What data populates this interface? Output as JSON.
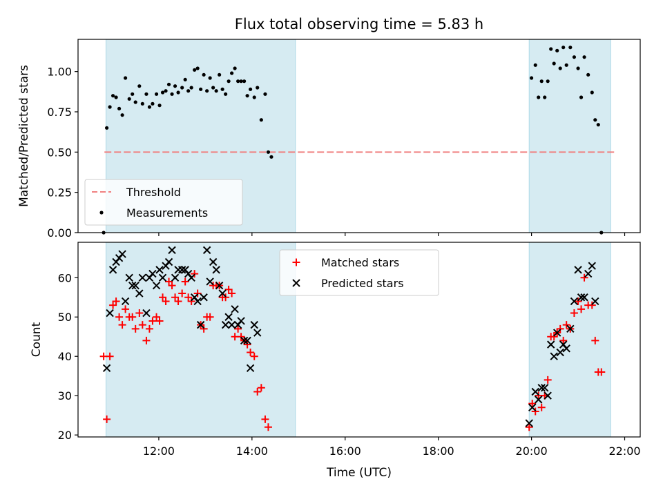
{
  "chart_data": [
    {
      "type": "scatter",
      "title": "Flux total observing time = 5.83 h",
      "xlabel": "",
      "ylabel": "Matched/Predicted stars",
      "ylim": [
        0,
        1.2
      ],
      "yticks": [
        "0.00",
        "0.25",
        "0.50",
        "0.75",
        "1.00"
      ],
      "xlim": [
        "10:16",
        "22:20"
      ],
      "observing_windows": [
        [
          "10:52",
          "14:56"
        ],
        [
          "19:57",
          "21:42"
        ]
      ],
      "threshold": {
        "label": "Threshold",
        "value": 0.5,
        "x_start": "10:50",
        "x_end": "21:48",
        "color": "#f08080"
      },
      "legend": {
        "position": "lower-left",
        "entries": [
          "Threshold",
          "Measurements"
        ]
      },
      "series": [
        {
          "name": "Measurements",
          "color": "#000000",
          "points": [
            [
              "10:49",
              0.0
            ],
            [
              "10:53",
              0.65
            ],
            [
              "10:57",
              0.78
            ],
            [
              "11:01",
              0.85
            ],
            [
              "11:05",
              0.84
            ],
            [
              "11:09",
              0.77
            ],
            [
              "11:13",
              0.73
            ],
            [
              "11:17",
              0.96
            ],
            [
              "11:22",
              0.83
            ],
            [
              "11:26",
              0.86
            ],
            [
              "11:30",
              0.81
            ],
            [
              "11:35",
              0.91
            ],
            [
              "11:39",
              0.8
            ],
            [
              "11:44",
              0.86
            ],
            [
              "11:48",
              0.78
            ],
            [
              "11:52",
              0.8
            ],
            [
              "11:57",
              0.86
            ],
            [
              "12:01",
              0.79
            ],
            [
              "12:05",
              0.87
            ],
            [
              "12:09",
              0.88
            ],
            [
              "12:13",
              0.92
            ],
            [
              "12:17",
              0.86
            ],
            [
              "12:21",
              0.91
            ],
            [
              "12:25",
              0.87
            ],
            [
              "12:30",
              0.9
            ],
            [
              "12:34",
              0.95
            ],
            [
              "12:38",
              0.88
            ],
            [
              "12:42",
              0.9
            ],
            [
              "12:46",
              1.01
            ],
            [
              "12:50",
              1.02
            ],
            [
              "12:54",
              0.89
            ],
            [
              "12:58",
              0.98
            ],
            [
              "13:02",
              0.88
            ],
            [
              "13:06",
              0.96
            ],
            [
              "13:10",
              0.9
            ],
            [
              "13:14",
              0.88
            ],
            [
              "13:18",
              0.98
            ],
            [
              "13:22",
              0.89
            ],
            [
              "13:26",
              0.86
            ],
            [
              "13:30",
              0.94
            ],
            [
              "13:34",
              0.99
            ],
            [
              "13:38",
              1.02
            ],
            [
              "13:42",
              0.94
            ],
            [
              "13:46",
              0.94
            ],
            [
              "13:50",
              0.94
            ],
            [
              "13:54",
              0.85
            ],
            [
              "13:58",
              0.89
            ],
            [
              "14:03",
              0.84
            ],
            [
              "14:07",
              0.9
            ],
            [
              "14:12",
              0.7
            ],
            [
              "14:17",
              0.86
            ],
            [
              "14:21",
              0.5
            ],
            [
              "14:25",
              0.47
            ],
            [
              "20:00",
              0.96
            ],
            [
              "20:05",
              1.04
            ],
            [
              "20:09",
              0.84
            ],
            [
              "20:13",
              0.94
            ],
            [
              "20:17",
              0.84
            ],
            [
              "20:21",
              0.94
            ],
            [
              "20:25",
              1.14
            ],
            [
              "20:29",
              1.05
            ],
            [
              "20:33",
              1.13
            ],
            [
              "20:37",
              1.02
            ],
            [
              "20:41",
              1.15
            ],
            [
              "20:45",
              1.04
            ],
            [
              "20:50",
              1.15
            ],
            [
              "20:55",
              1.09
            ],
            [
              "21:00",
              1.02
            ],
            [
              "21:04",
              0.84
            ],
            [
              "21:08",
              1.09
            ],
            [
              "21:13",
              0.98
            ],
            [
              "21:18",
              0.87
            ],
            [
              "21:22",
              0.7
            ],
            [
              "21:26",
              0.67
            ],
            [
              "21:30",
              0.0
            ]
          ]
        }
      ]
    },
    {
      "type": "scatter",
      "title": "",
      "xlabel": "Time (UTC)",
      "ylabel": "Count",
      "ylim": [
        19.5,
        69
      ],
      "yticks": [
        "20",
        "30",
        "40",
        "50",
        "60"
      ],
      "xticks": [
        "12:00",
        "14:00",
        "16:00",
        "18:00",
        "20:00",
        "22:00"
      ],
      "legend": {
        "position": "upper-center",
        "entries": [
          "Matched stars",
          "Predicted stars"
        ]
      },
      "series": [
        {
          "name": "Matched stars",
          "marker": "+",
          "color": "#ff0000",
          "points": [
            [
              "10:49",
              40
            ],
            [
              "10:53",
              24
            ],
            [
              "10:57",
              40
            ],
            [
              "11:01",
              53
            ],
            [
              "11:05",
              54
            ],
            [
              "11:09",
              50
            ],
            [
              "11:13",
              48
            ],
            [
              "11:17",
              52
            ],
            [
              "11:22",
              50
            ],
            [
              "11:26",
              50
            ],
            [
              "11:30",
              47
            ],
            [
              "11:35",
              51
            ],
            [
              "11:39",
              48
            ],
            [
              "11:44",
              44
            ],
            [
              "11:48",
              47
            ],
            [
              "11:52",
              49
            ],
            [
              "11:57",
              50
            ],
            [
              "12:01",
              49
            ],
            [
              "12:05",
              55
            ],
            [
              "12:09",
              54
            ],
            [
              "12:13",
              59
            ],
            [
              "12:17",
              58
            ],
            [
              "12:21",
              55
            ],
            [
              "12:25",
              54
            ],
            [
              "12:30",
              56
            ],
            [
              "12:34",
              59
            ],
            [
              "12:38",
              55
            ],
            [
              "12:42",
              54
            ],
            [
              "12:46",
              61
            ],
            [
              "12:50",
              56
            ],
            [
              "12:54",
              48
            ],
            [
              "12:58",
              47
            ],
            [
              "13:02",
              50
            ],
            [
              "13:06",
              50
            ],
            [
              "13:10",
              58
            ],
            [
              "13:14",
              58
            ],
            [
              "13:18",
              58
            ],
            [
              "13:22",
              55
            ],
            [
              "13:26",
              55
            ],
            [
              "13:30",
              57
            ],
            [
              "13:34",
              56
            ],
            [
              "13:38",
              45
            ],
            [
              "13:42",
              47
            ],
            [
              "13:46",
              45
            ],
            [
              "13:50",
              44
            ],
            [
              "13:54",
              43
            ],
            [
              "13:58",
              41
            ],
            [
              "14:03",
              40
            ],
            [
              "14:07",
              31
            ],
            [
              "14:12",
              32
            ],
            [
              "14:17",
              24
            ],
            [
              "14:21",
              22
            ],
            [
              "19:57",
              22
            ],
            [
              "20:01",
              28
            ],
            [
              "20:05",
              26
            ],
            [
              "20:09",
              30
            ],
            [
              "20:13",
              27
            ],
            [
              "20:17",
              30
            ],
            [
              "20:21",
              34
            ],
            [
              "20:25",
              45
            ],
            [
              "20:29",
              45
            ],
            [
              "20:33",
              46
            ],
            [
              "20:37",
              47
            ],
            [
              "20:41",
              44
            ],
            [
              "20:45",
              48
            ],
            [
              "20:50",
              47
            ],
            [
              "20:55",
              51
            ],
            [
              "21:00",
              54
            ],
            [
              "21:04",
              52
            ],
            [
              "21:08",
              60
            ],
            [
              "21:13",
              53
            ],
            [
              "21:18",
              53
            ],
            [
              "21:22",
              44
            ],
            [
              "21:26",
              36
            ],
            [
              "21:30",
              36
            ]
          ]
        },
        {
          "name": "Predicted stars",
          "marker": "x",
          "color": "#000000",
          "points": [
            [
              "10:53",
              37
            ],
            [
              "10:57",
              51
            ],
            [
              "11:01",
              62
            ],
            [
              "11:05",
              64
            ],
            [
              "11:09",
              65
            ],
            [
              "11:13",
              66
            ],
            [
              "11:17",
              54
            ],
            [
              "11:22",
              60
            ],
            [
              "11:26",
              58
            ],
            [
              "11:30",
              58
            ],
            [
              "11:35",
              56
            ],
            [
              "11:39",
              60
            ],
            [
              "11:44",
              51
            ],
            [
              "11:48",
              60
            ],
            [
              "11:52",
              61
            ],
            [
              "11:57",
              58
            ],
            [
              "12:01",
              62
            ],
            [
              "12:05",
              60
            ],
            [
              "12:09",
              63
            ],
            [
              "12:13",
              64
            ],
            [
              "12:17",
              67
            ],
            [
              "12:21",
              60
            ],
            [
              "12:25",
              62
            ],
            [
              "12:30",
              62
            ],
            [
              "12:34",
              62
            ],
            [
              "12:38",
              61
            ],
            [
              "12:42",
              60
            ],
            [
              "12:46",
              55
            ],
            [
              "12:50",
              54
            ],
            [
              "12:54",
              48
            ],
            [
              "12:58",
              55
            ],
            [
              "13:02",
              67
            ],
            [
              "13:06",
              59
            ],
            [
              "13:10",
              64
            ],
            [
              "13:14",
              62
            ],
            [
              "13:18",
              58
            ],
            [
              "13:22",
              56
            ],
            [
              "13:26",
              48
            ],
            [
              "13:30",
              50
            ],
            [
              "13:34",
              48
            ],
            [
              "13:38",
              52
            ],
            [
              "13:42",
              48
            ],
            [
              "13:46",
              49
            ],
            [
              "13:50",
              44
            ],
            [
              "13:54",
              44
            ],
            [
              "13:58",
              37
            ],
            [
              "14:03",
              48
            ],
            [
              "14:07",
              46
            ],
            [
              "19:57",
              23
            ],
            [
              "20:01",
              27
            ],
            [
              "20:05",
              31
            ],
            [
              "20:09",
              29
            ],
            [
              "20:13",
              32
            ],
            [
              "20:17",
              32
            ],
            [
              "20:21",
              30
            ],
            [
              "20:25",
              43
            ],
            [
              "20:29",
              40
            ],
            [
              "20:33",
              46
            ],
            [
              "20:37",
              41
            ],
            [
              "20:41",
              43
            ],
            [
              "20:45",
              42
            ],
            [
              "20:50",
              47
            ],
            [
              "20:55",
              54
            ],
            [
              "21:00",
              62
            ],
            [
              "21:04",
              55
            ],
            [
              "21:08",
              55
            ],
            [
              "21:13",
              61
            ],
            [
              "21:18",
              63
            ],
            [
              "21:22",
              54
            ]
          ]
        }
      ]
    }
  ],
  "colors": {
    "window_fill": "#add8e6",
    "threshold": "#f08080",
    "matched": "#ff0000",
    "predicted": "#000000"
  }
}
